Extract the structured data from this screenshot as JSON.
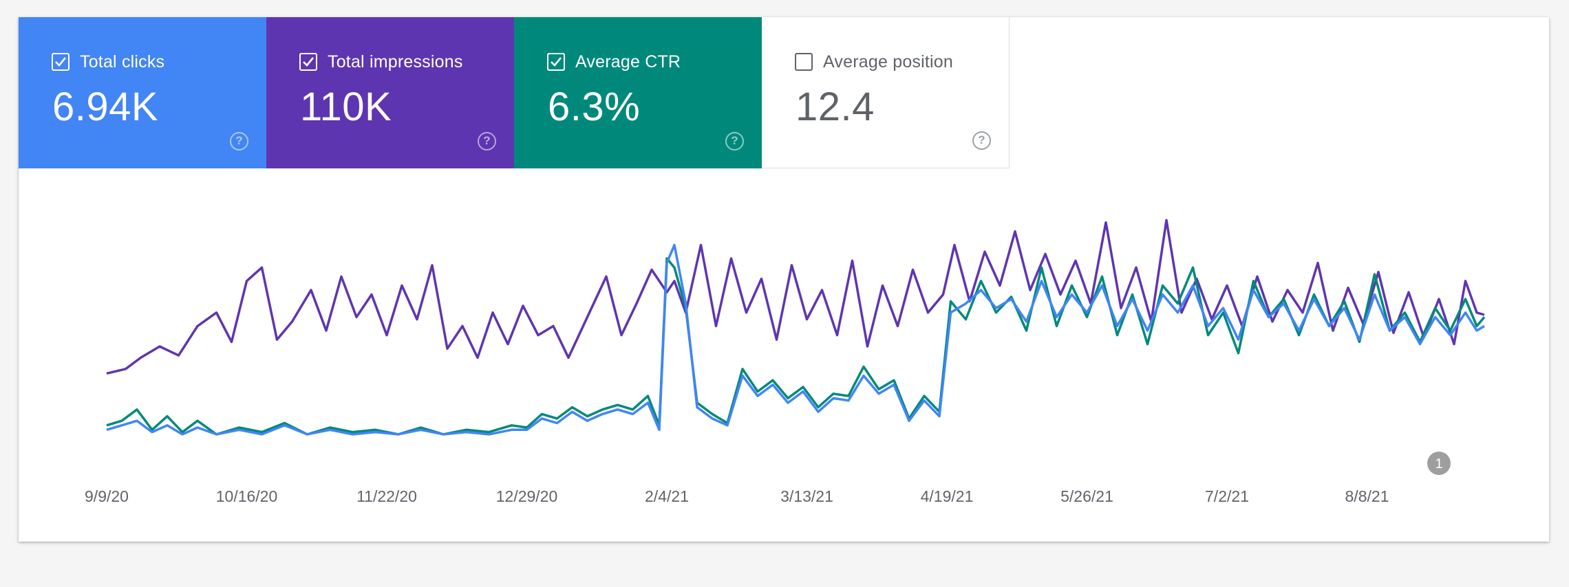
{
  "metrics": {
    "clicks": {
      "label": "Total clicks",
      "value": "6.94K",
      "checked": true
    },
    "impressions": {
      "label": "Total impressions",
      "value": "110K",
      "checked": true
    },
    "ctr": {
      "label": "Average CTR",
      "value": "6.3%",
      "checked": true
    },
    "position": {
      "label": "Average position",
      "value": "12.4",
      "checked": false
    }
  },
  "colors": {
    "clicks": "#4285f4",
    "impressions": "#5e35b1",
    "ctr": "#00897b",
    "position_text": "#5f6368",
    "annotation": "#9e9e9e"
  },
  "icons": {
    "help": "help-circle-icon",
    "checkbox": "checkbox-icon"
  },
  "chart_data": {
    "type": "line",
    "title": "",
    "xlabel": "",
    "ylabel": "",
    "grid": false,
    "y_axis_labels": "hidden",
    "x_ticks": [
      "9/9/20",
      "10/16/20",
      "11/22/20",
      "12/29/20",
      "2/4/21",
      "3/13/21",
      "4/19/21",
      "5/26/21",
      "7/2/21",
      "8/8/21"
    ],
    "x_range": [
      "2020-09-09",
      "2021-09-08"
    ],
    "annotations": [
      {
        "label": "1",
        "date": "2021-08-27"
      }
    ],
    "series": [
      {
        "key": "impressions",
        "color": "#5e35b1",
        "note": "relative level, axis not shown; values on a 0-100 scale of the plot height",
        "points": [
          [
            "2020-09-09",
            31
          ],
          [
            "2020-09-14",
            33
          ],
          [
            "2020-09-18",
            38
          ],
          [
            "2020-09-23",
            43
          ],
          [
            "2020-09-28",
            39
          ],
          [
            "2020-10-03",
            52
          ],
          [
            "2020-10-08",
            58
          ],
          [
            "2020-10-12",
            45
          ],
          [
            "2020-10-16",
            72
          ],
          [
            "2020-10-20",
            78
          ],
          [
            "2020-10-24",
            46
          ],
          [
            "2020-10-28",
            54
          ],
          [
            "2020-11-02",
            68
          ],
          [
            "2020-11-06",
            50
          ],
          [
            "2020-11-10",
            74
          ],
          [
            "2020-11-14",
            56
          ],
          [
            "2020-11-18",
            66
          ],
          [
            "2020-11-22",
            48
          ],
          [
            "2020-11-26",
            70
          ],
          [
            "2020-11-30",
            55
          ],
          [
            "2020-12-04",
            79
          ],
          [
            "2020-12-08",
            42
          ],
          [
            "2020-12-12",
            52
          ],
          [
            "2020-12-16",
            38
          ],
          [
            "2020-12-20",
            58
          ],
          [
            "2020-12-24",
            44
          ],
          [
            "2020-12-28",
            61
          ],
          [
            "2021-01-01",
            48
          ],
          [
            "2021-01-05",
            52
          ],
          [
            "2021-01-09",
            38
          ],
          [
            "2021-01-14",
            56
          ],
          [
            "2021-01-19",
            74
          ],
          [
            "2021-01-23",
            48
          ],
          [
            "2021-01-27",
            62
          ],
          [
            "2021-01-31",
            77
          ],
          [
            "2021-02-04",
            67
          ],
          [
            "2021-02-06",
            72
          ],
          [
            "2021-02-09",
            58
          ],
          [
            "2021-02-13",
            88
          ],
          [
            "2021-02-17",
            52
          ],
          [
            "2021-02-21",
            82
          ],
          [
            "2021-02-25",
            58
          ],
          [
            "2021-03-01",
            73
          ],
          [
            "2021-03-05",
            46
          ],
          [
            "2021-03-09",
            79
          ],
          [
            "2021-03-13",
            55
          ],
          [
            "2021-03-17",
            68
          ],
          [
            "2021-03-21",
            48
          ],
          [
            "2021-03-25",
            81
          ],
          [
            "2021-03-29",
            43
          ],
          [
            "2021-04-02",
            70
          ],
          [
            "2021-04-06",
            52
          ],
          [
            "2021-04-10",
            77
          ],
          [
            "2021-04-14",
            58
          ],
          [
            "2021-04-18",
            66
          ],
          [
            "2021-04-21",
            88
          ],
          [
            "2021-04-25",
            63
          ],
          [
            "2021-04-29",
            85
          ],
          [
            "2021-05-03",
            70
          ],
          [
            "2021-05-07",
            94
          ],
          [
            "2021-05-11",
            68
          ],
          [
            "2021-05-15",
            84
          ],
          [
            "2021-05-19",
            66
          ],
          [
            "2021-05-23",
            81
          ],
          [
            "2021-05-27",
            62
          ],
          [
            "2021-05-31",
            98
          ],
          [
            "2021-06-04",
            60
          ],
          [
            "2021-06-08",
            78
          ],
          [
            "2021-06-12",
            54
          ],
          [
            "2021-06-16",
            99
          ],
          [
            "2021-06-20",
            58
          ],
          [
            "2021-06-24",
            73
          ],
          [
            "2021-06-28",
            55
          ],
          [
            "2021-07-02",
            70
          ],
          [
            "2021-07-06",
            52
          ],
          [
            "2021-07-10",
            74
          ],
          [
            "2021-07-14",
            54
          ],
          [
            "2021-07-18",
            68
          ],
          [
            "2021-07-22",
            58
          ],
          [
            "2021-07-26",
            80
          ],
          [
            "2021-07-30",
            50
          ],
          [
            "2021-08-03",
            69
          ],
          [
            "2021-08-07",
            53
          ],
          [
            "2021-08-11",
            76
          ],
          [
            "2021-08-15",
            49
          ],
          [
            "2021-08-19",
            67
          ],
          [
            "2021-08-23",
            47
          ],
          [
            "2021-08-27",
            64
          ],
          [
            "2021-08-31",
            44
          ],
          [
            "2021-09-03",
            72
          ],
          [
            "2021-09-06",
            58
          ],
          [
            "2021-09-08",
            57
          ]
        ]
      },
      {
        "key": "ctr",
        "color": "#00897b",
        "note": "relative level, axis not shown; values on a 0-100 scale of the plot height",
        "points": [
          [
            "2020-09-09",
            8
          ],
          [
            "2020-09-13",
            10
          ],
          [
            "2020-09-17",
            15
          ],
          [
            "2020-09-21",
            6
          ],
          [
            "2020-09-25",
            12
          ],
          [
            "2020-09-29",
            5
          ],
          [
            "2020-10-03",
            10
          ],
          [
            "2020-10-08",
            4
          ],
          [
            "2020-10-14",
            7
          ],
          [
            "2020-10-20",
            5
          ],
          [
            "2020-10-26",
            9
          ],
          [
            "2020-11-01",
            4
          ],
          [
            "2020-11-07",
            7
          ],
          [
            "2020-11-13",
            5
          ],
          [
            "2020-11-19",
            6
          ],
          [
            "2020-11-25",
            4
          ],
          [
            "2020-12-01",
            7
          ],
          [
            "2020-12-07",
            4
          ],
          [
            "2020-12-13",
            6
          ],
          [
            "2020-12-19",
            5
          ],
          [
            "2020-12-25",
            8
          ],
          [
            "2020-12-29",
            7
          ],
          [
            "2021-01-02",
            13
          ],
          [
            "2021-01-06",
            11
          ],
          [
            "2021-01-10",
            16
          ],
          [
            "2021-01-14",
            12
          ],
          [
            "2021-01-18",
            15
          ],
          [
            "2021-01-22",
            17
          ],
          [
            "2021-01-26",
            15
          ],
          [
            "2021-01-30",
            21
          ],
          [
            "2021-02-02",
            8
          ],
          [
            "2021-02-04",
            82
          ],
          [
            "2021-02-06",
            78
          ],
          [
            "2021-02-09",
            60
          ],
          [
            "2021-02-12",
            18
          ],
          [
            "2021-02-16",
            13
          ],
          [
            "2021-02-20",
            9
          ],
          [
            "2021-02-24",
            33
          ],
          [
            "2021-02-28",
            23
          ],
          [
            "2021-03-04",
            28
          ],
          [
            "2021-03-08",
            20
          ],
          [
            "2021-03-12",
            25
          ],
          [
            "2021-03-16",
            16
          ],
          [
            "2021-03-20",
            22
          ],
          [
            "2021-03-24",
            21
          ],
          [
            "2021-03-28",
            34
          ],
          [
            "2021-04-01",
            24
          ],
          [
            "2021-04-05",
            28
          ],
          [
            "2021-04-09",
            11
          ],
          [
            "2021-04-13",
            21
          ],
          [
            "2021-04-17",
            14
          ],
          [
            "2021-04-20",
            63
          ],
          [
            "2021-04-24",
            55
          ],
          [
            "2021-04-28",
            72
          ],
          [
            "2021-05-02",
            58
          ],
          [
            "2021-05-06",
            65
          ],
          [
            "2021-05-10",
            50
          ],
          [
            "2021-05-14",
            78
          ],
          [
            "2021-05-18",
            52
          ],
          [
            "2021-05-22",
            70
          ],
          [
            "2021-05-26",
            56
          ],
          [
            "2021-05-30",
            74
          ],
          [
            "2021-06-03",
            48
          ],
          [
            "2021-06-07",
            66
          ],
          [
            "2021-06-11",
            44
          ],
          [
            "2021-06-15",
            70
          ],
          [
            "2021-06-19",
            62
          ],
          [
            "2021-06-23",
            78
          ],
          [
            "2021-06-27",
            48
          ],
          [
            "2021-07-01",
            58
          ],
          [
            "2021-07-05",
            40
          ],
          [
            "2021-07-09",
            72
          ],
          [
            "2021-07-13",
            56
          ],
          [
            "2021-07-17",
            64
          ],
          [
            "2021-07-21",
            48
          ],
          [
            "2021-07-25",
            66
          ],
          [
            "2021-07-29",
            52
          ],
          [
            "2021-08-02",
            63
          ],
          [
            "2021-08-06",
            45
          ],
          [
            "2021-08-10",
            75
          ],
          [
            "2021-08-14",
            50
          ],
          [
            "2021-08-18",
            58
          ],
          [
            "2021-08-22",
            45
          ],
          [
            "2021-08-26",
            60
          ],
          [
            "2021-08-30",
            50
          ],
          [
            "2021-09-03",
            64
          ],
          [
            "2021-09-06",
            52
          ],
          [
            "2021-09-08",
            56
          ]
        ]
      },
      {
        "key": "clicks",
        "color": "#4285f4",
        "note": "relative level, axis not shown; values on a 0-100 scale of the plot height",
        "points": [
          [
            "2020-09-09",
            6
          ],
          [
            "2020-09-13",
            8
          ],
          [
            "2020-09-17",
            10
          ],
          [
            "2020-09-21",
            5
          ],
          [
            "2020-09-25",
            8
          ],
          [
            "2020-09-29",
            4
          ],
          [
            "2020-10-03",
            7
          ],
          [
            "2020-10-08",
            4
          ],
          [
            "2020-10-14",
            6
          ],
          [
            "2020-10-20",
            4
          ],
          [
            "2020-10-26",
            8
          ],
          [
            "2020-11-01",
            4
          ],
          [
            "2020-11-07",
            6
          ],
          [
            "2020-11-13",
            4
          ],
          [
            "2020-11-19",
            5
          ],
          [
            "2020-11-25",
            4
          ],
          [
            "2020-12-01",
            6
          ],
          [
            "2020-12-07",
            4
          ],
          [
            "2020-12-13",
            5
          ],
          [
            "2020-12-19",
            4
          ],
          [
            "2020-12-25",
            6
          ],
          [
            "2020-12-29",
            6
          ],
          [
            "2021-01-02",
            11
          ],
          [
            "2021-01-06",
            9
          ],
          [
            "2021-01-10",
            14
          ],
          [
            "2021-01-14",
            10
          ],
          [
            "2021-01-18",
            13
          ],
          [
            "2021-01-22",
            15
          ],
          [
            "2021-01-26",
            13
          ],
          [
            "2021-01-30",
            18
          ],
          [
            "2021-02-02",
            6
          ],
          [
            "2021-02-04",
            80
          ],
          [
            "2021-02-06",
            88
          ],
          [
            "2021-02-09",
            62
          ],
          [
            "2021-02-12",
            16
          ],
          [
            "2021-02-16",
            11
          ],
          [
            "2021-02-20",
            8
          ],
          [
            "2021-02-24",
            30
          ],
          [
            "2021-02-28",
            21
          ],
          [
            "2021-03-04",
            26
          ],
          [
            "2021-03-08",
            18
          ],
          [
            "2021-03-12",
            23
          ],
          [
            "2021-03-16",
            14
          ],
          [
            "2021-03-20",
            20
          ],
          [
            "2021-03-24",
            19
          ],
          [
            "2021-03-28",
            30
          ],
          [
            "2021-04-01",
            22
          ],
          [
            "2021-04-05",
            26
          ],
          [
            "2021-04-09",
            10
          ],
          [
            "2021-04-13",
            19
          ],
          [
            "2021-04-17",
            12
          ],
          [
            "2021-04-20",
            58
          ],
          [
            "2021-04-24",
            62
          ],
          [
            "2021-04-28",
            68
          ],
          [
            "2021-05-02",
            60
          ],
          [
            "2021-05-06",
            64
          ],
          [
            "2021-05-10",
            54
          ],
          [
            "2021-05-14",
            72
          ],
          [
            "2021-05-18",
            56
          ],
          [
            "2021-05-22",
            66
          ],
          [
            "2021-05-26",
            58
          ],
          [
            "2021-05-30",
            70
          ],
          [
            "2021-06-03",
            52
          ],
          [
            "2021-06-07",
            64
          ],
          [
            "2021-06-11",
            50
          ],
          [
            "2021-06-15",
            66
          ],
          [
            "2021-06-19",
            58
          ],
          [
            "2021-06-23",
            70
          ],
          [
            "2021-06-27",
            52
          ],
          [
            "2021-07-01",
            60
          ],
          [
            "2021-07-05",
            46
          ],
          [
            "2021-07-09",
            68
          ],
          [
            "2021-07-13",
            56
          ],
          [
            "2021-07-17",
            62
          ],
          [
            "2021-07-21",
            50
          ],
          [
            "2021-07-25",
            64
          ],
          [
            "2021-07-29",
            52
          ],
          [
            "2021-08-02",
            60
          ],
          [
            "2021-08-06",
            46
          ],
          [
            "2021-08-10",
            66
          ],
          [
            "2021-08-14",
            50
          ],
          [
            "2021-08-18",
            56
          ],
          [
            "2021-08-22",
            44
          ],
          [
            "2021-08-26",
            56
          ],
          [
            "2021-08-30",
            48
          ],
          [
            "2021-09-03",
            58
          ],
          [
            "2021-09-06",
            50
          ],
          [
            "2021-09-08",
            52
          ]
        ]
      }
    ]
  }
}
